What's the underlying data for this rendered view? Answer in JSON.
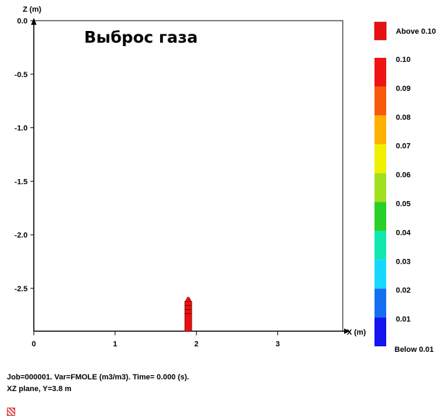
{
  "chart_data": {
    "type": "contour",
    "title": "Выброс газа",
    "xlabel": "X (m)",
    "ylabel": "Z (m)",
    "xlim": [
      0,
      3.8
    ],
    "ylim": [
      -2.9,
      0
    ],
    "x_ticks": [
      "0",
      "1",
      "2",
      "3"
    ],
    "y_ticks": [
      "0.0",
      "-0.5",
      "-1.0",
      "-1.5",
      "-2.0",
      "-2.5"
    ],
    "source": {
      "x": 1.9,
      "z_top": -2.62,
      "z_bottom": -2.9,
      "value": "Above 0.10",
      "color": "#e81010"
    },
    "legend": {
      "above_label": "Above 0.10",
      "above_color": "#e81010",
      "below_label": "Below 0.01",
      "levels": [
        {
          "label": "0.10",
          "color": "#f01414"
        },
        {
          "label": "0.09",
          "color": "#f85a0a"
        },
        {
          "label": "0.08",
          "color": "#ffb000"
        },
        {
          "label": "0.07",
          "color": "#f0f000"
        },
        {
          "label": "0.06",
          "color": "#a0e020"
        },
        {
          "label": "0.05",
          "color": "#28d028"
        },
        {
          "label": "0.04",
          "color": "#10e8b0"
        },
        {
          "label": "0.03",
          "color": "#18d8ff"
        },
        {
          "label": "0.02",
          "color": "#1470f0"
        },
        {
          "label": "0.01",
          "color": "#1414f0"
        }
      ]
    }
  },
  "info": {
    "line1": "Job=000001.  Var=FMOLE (m3/m3). Time=   0.000 (s).",
    "line2": "XZ plane, Y=3.8 m"
  },
  "icons": {
    "corner": "hatched-square-icon"
  }
}
